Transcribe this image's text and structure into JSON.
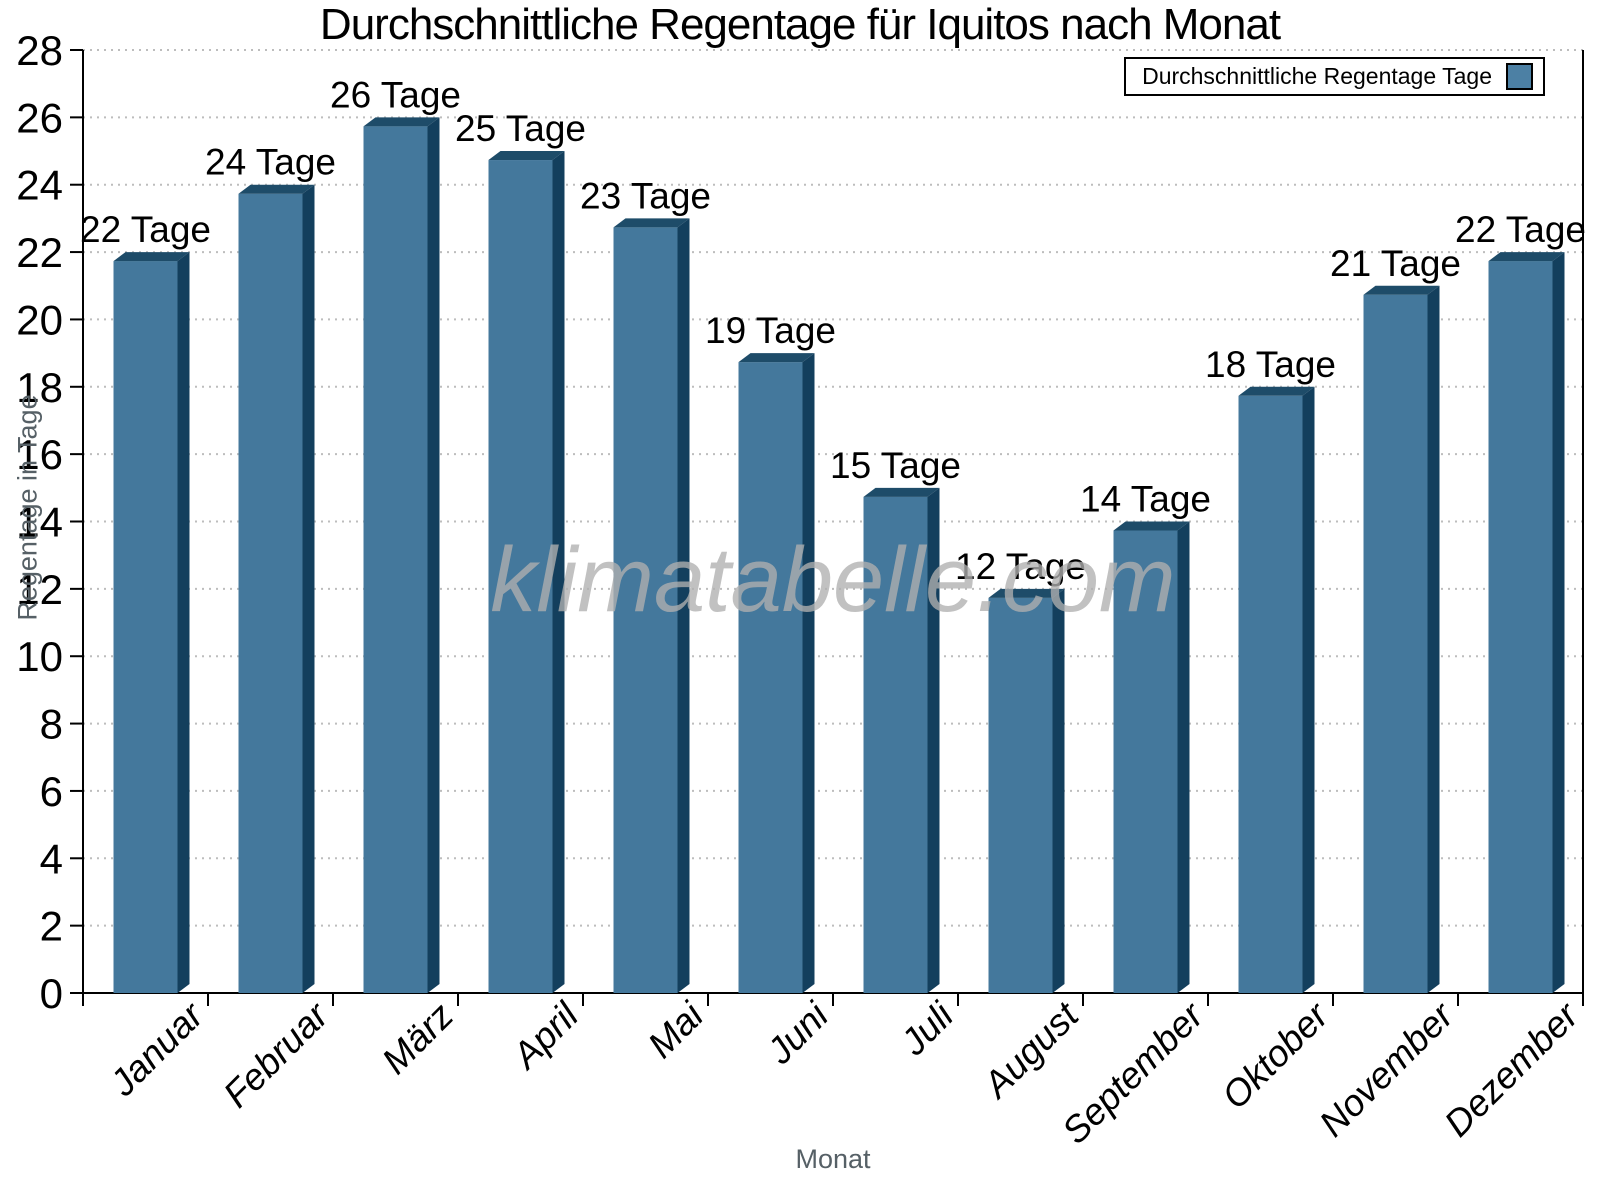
{
  "chart_data": {
    "type": "bar",
    "title": "Durchschnittliche Regentage für Iquitos nach Monat",
    "categories": [
      "Januar",
      "Februar",
      "März",
      "April",
      "Mai",
      "Juni",
      "Juli",
      "August",
      "September",
      "Oktober",
      "November",
      "Dezember"
    ],
    "values": [
      22,
      24,
      26,
      25,
      23,
      19,
      15,
      12,
      14,
      18,
      21,
      22
    ],
    "series_name": "Durchschnittliche Regentage",
    "bar_label_suffix": " Tage",
    "xlabel": "Monat",
    "ylabel": "Regentage in Tage",
    "ylim": [
      0,
      28
    ],
    "ytick_step": 2,
    "grid": "horizontal-dotted",
    "legend_label": "Durchschnittliche Regentage Tage",
    "legend_position": "top-right",
    "watermark": "klimatabelle.com",
    "colors": {
      "bar_front": "#44789C",
      "bar_side": "#133F5D",
      "bar_top": "#1E4C69",
      "legend_swatch": "#4C80A4",
      "grid": "#BDBDBD",
      "axis": "#000000",
      "axis_title": "#566066",
      "tick_label": "#000000",
      "watermark": "#B0B0B0"
    }
  }
}
